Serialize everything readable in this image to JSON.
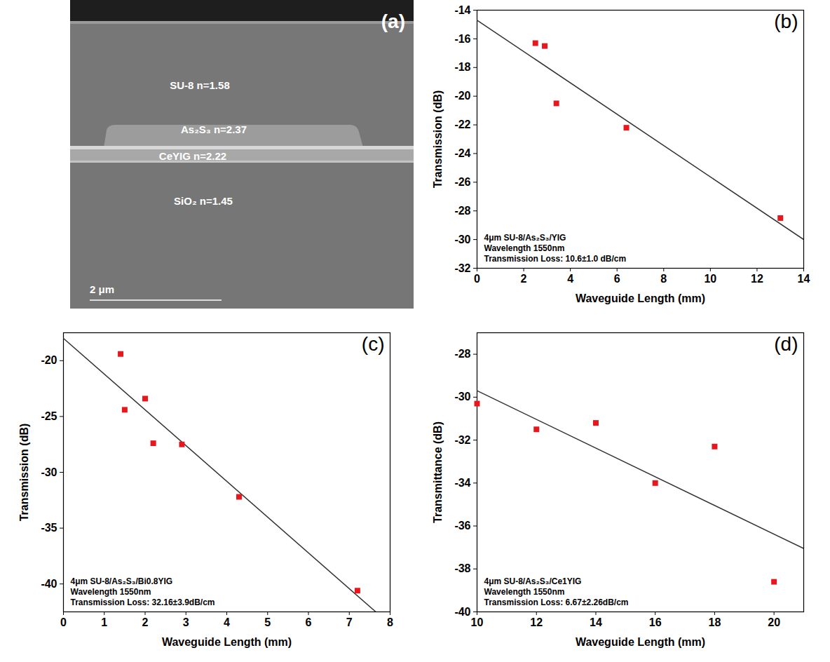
{
  "image_panel": {
    "label": "(a)",
    "layers": [
      "SU-8 n=1.58",
      "As₂S₃ n=2.37",
      "CeYIG n=2.22",
      "SiO₂ n=1.45"
    ],
    "scale_bar": "2 μm"
  },
  "chart_data": [
    {
      "type": "scatter",
      "panel": "(b)",
      "x": [
        2.5,
        2.9,
        3.4,
        6.4,
        13
      ],
      "values": [
        -16.3,
        -16.5,
        -20.5,
        -22.2,
        -28.5
      ],
      "color": "#e8161d",
      "marker": "square",
      "fit": {
        "x": [
          0,
          14
        ],
        "values": [
          -14.7,
          -30
        ],
        "color": "#333333"
      },
      "xlabel": "Waveguide Length (mm)",
      "ylabel": "Transmission (dB)",
      "xlim": [
        0,
        14
      ],
      "xticks": [
        0,
        2,
        4,
        6,
        8,
        10,
        12,
        14
      ],
      "ylim": [
        -32,
        -14
      ],
      "yticks": [
        -32,
        -30,
        -28,
        -26,
        -24,
        -22,
        -20,
        -18,
        -16,
        -14
      ],
      "annotations": [
        "4μm SU-8/As₂S₃/YIG",
        "Wavelength 1550nm",
        "Transmission Loss: 10.6±1.0 dB/cm"
      ]
    },
    {
      "type": "scatter",
      "panel": "(c)",
      "x": [
        1.4,
        1.5,
        2.0,
        2.2,
        2.9,
        4.3,
        7.2
      ],
      "values": [
        -19.4,
        -24.4,
        -23.4,
        -27.4,
        -27.5,
        -32.2,
        -40.6
      ],
      "color": "#e8161d",
      "marker": "square",
      "fit": {
        "x": [
          0,
          7.65
        ],
        "values": [
          -18,
          -42.5
        ],
        "color": "#333333"
      },
      "xlabel": "Waveguide Length (mm)",
      "ylabel": "Transmission (dB)",
      "xlim": [
        0,
        8
      ],
      "xticks": [
        0,
        1,
        2,
        3,
        4,
        5,
        6,
        7,
        8
      ],
      "ylim": [
        -42.5,
        -17.5
      ],
      "yticks": [
        -40,
        -35,
        -30,
        -25,
        -20
      ],
      "annotations": [
        "4μm SU-8/As₂S₃/Bi0.8YIG",
        "Wavelength 1550nm",
        "Transmission Loss: 32.16±3.9dB/cm"
      ]
    },
    {
      "type": "scatter",
      "panel": "(d)",
      "x": [
        10,
        12,
        14,
        16,
        18,
        20
      ],
      "values": [
        -30.3,
        -31.5,
        -31.2,
        -34,
        -32.3,
        -38.6
      ],
      "color": "#e8161d",
      "marker": "square",
      "fit": {
        "x": [
          10,
          21
        ],
        "values": [
          -29.7,
          -37.05
        ],
        "color": "#333333"
      },
      "xlabel": "Waveguide Length (mm)",
      "ylabel": "Transmittance (dB)",
      "xlim": [
        10,
        21
      ],
      "xticks": [
        10,
        12,
        14,
        16,
        18,
        20
      ],
      "ylim": [
        -40,
        -27
      ],
      "yticks": [
        -40,
        -38,
        -36,
        -34,
        -32,
        -30,
        -28
      ],
      "annotations": [
        "4μm SU-8/As₂S₃/Ce1YIG",
        "Wavelength 1550nm",
        "Transmission Loss: 6.67±2.26dB/cm"
      ]
    }
  ]
}
